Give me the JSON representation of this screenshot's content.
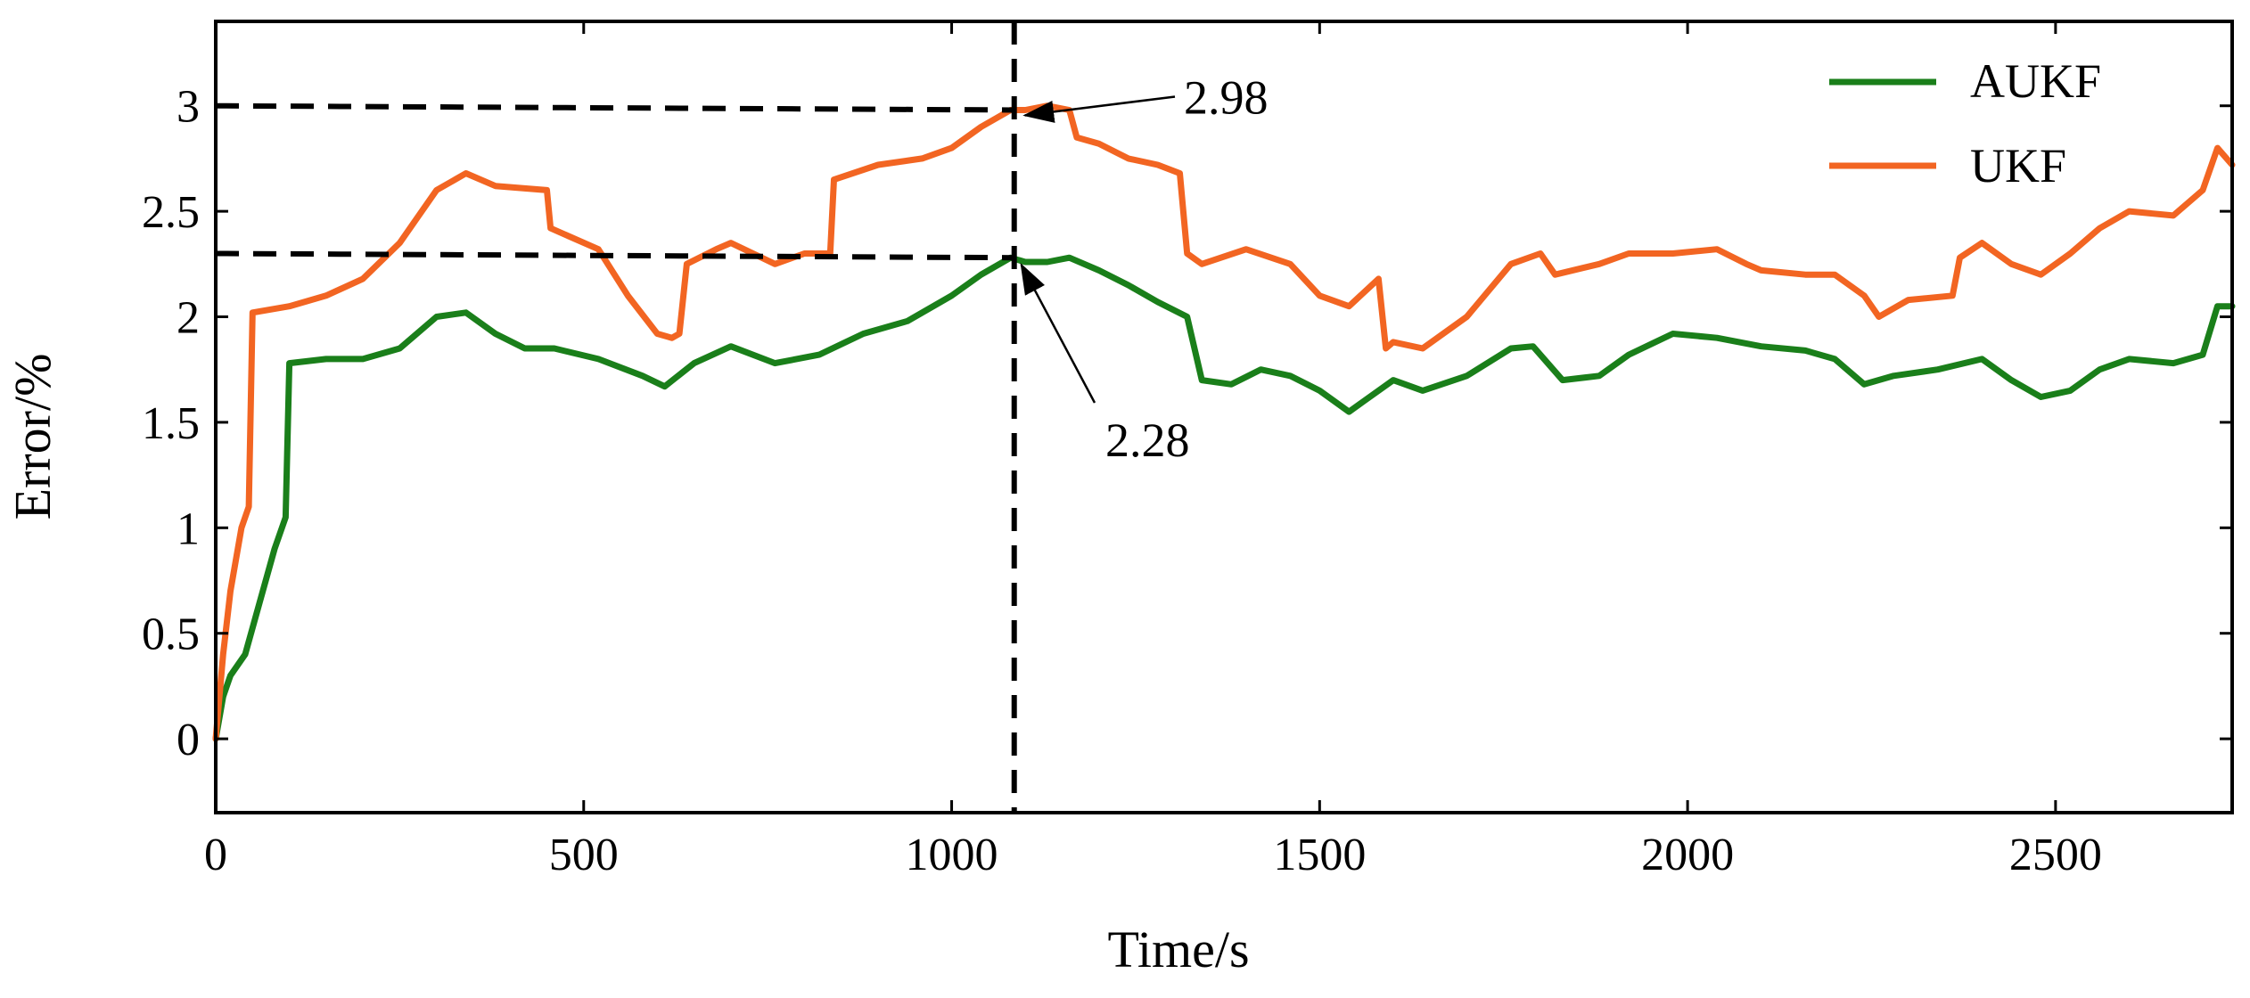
{
  "chart_data": {
    "type": "line",
    "title": "",
    "xlabel": "Time/s",
    "ylabel": "Error/%",
    "xlim": [
      0,
      2740
    ],
    "ylim": [
      -0.35,
      3.4
    ],
    "xticks": [
      0,
      500,
      1000,
      1500,
      2000,
      2500
    ],
    "yticks": [
      0,
      0.5,
      1,
      1.5,
      2,
      2.5,
      3
    ],
    "xtick_labels": [
      "0",
      "500",
      "1000",
      "1500",
      "2000",
      "2500"
    ],
    "ytick_labels": [
      "0",
      "0.5",
      "1",
      "1.5",
      "2",
      "2.5",
      "3"
    ],
    "grid": false,
    "legend_position": "top-right",
    "series": [
      {
        "name": "AUKF",
        "color": "#1a7f1a",
        "x": [
          0,
          10,
          20,
          40,
          60,
          80,
          95,
          100,
          150,
          200,
          250,
          300,
          340,
          380,
          420,
          460,
          520,
          580,
          610,
          650,
          700,
          760,
          820,
          880,
          940,
          1000,
          1040,
          1080,
          1100,
          1130,
          1160,
          1200,
          1240,
          1280,
          1320,
          1340,
          1380,
          1420,
          1460,
          1500,
          1540,
          1560,
          1600,
          1640,
          1700,
          1760,
          1790,
          1810,
          1830,
          1880,
          1920,
          1980,
          2040,
          2100,
          2160,
          2200,
          2240,
          2280,
          2340,
          2400,
          2440,
          2480,
          2520,
          2560,
          2600,
          2660,
          2700,
          2720,
          2740
        ],
        "values": [
          0,
          0.2,
          0.3,
          0.4,
          0.65,
          0.9,
          1.05,
          1.78,
          1.8,
          1.8,
          1.85,
          2.0,
          2.02,
          1.92,
          1.85,
          1.85,
          1.8,
          1.72,
          1.67,
          1.78,
          1.86,
          1.78,
          1.82,
          1.92,
          1.98,
          2.1,
          2.2,
          2.28,
          2.26,
          2.26,
          2.28,
          2.22,
          2.15,
          2.07,
          2.0,
          1.7,
          1.68,
          1.75,
          1.72,
          1.65,
          1.55,
          1.6,
          1.7,
          1.65,
          1.72,
          1.85,
          1.86,
          1.78,
          1.7,
          1.72,
          1.82,
          1.92,
          1.9,
          1.86,
          1.84,
          1.8,
          1.68,
          1.72,
          1.75,
          1.8,
          1.7,
          1.62,
          1.65,
          1.75,
          1.8,
          1.78,
          1.82,
          2.05,
          2.05
        ]
      },
      {
        "name": "UKF",
        "color": "#f26522",
        "x": [
          0,
          10,
          20,
          35,
          45,
          50,
          100,
          150,
          200,
          250,
          300,
          340,
          380,
          450,
          455,
          520,
          560,
          600,
          620,
          630,
          640,
          680,
          700,
          760,
          800,
          835,
          840,
          900,
          960,
          1000,
          1040,
          1080,
          1100,
          1130,
          1160,
          1170,
          1200,
          1240,
          1280,
          1310,
          1320,
          1340,
          1400,
          1460,
          1500,
          1540,
          1580,
          1590,
          1600,
          1640,
          1700,
          1760,
          1800,
          1820,
          1880,
          1920,
          1980,
          2040,
          2080,
          2100,
          2160,
          2200,
          2240,
          2260,
          2300,
          2360,
          2370,
          2400,
          2440,
          2480,
          2520,
          2560,
          2600,
          2660,
          2700,
          2720,
          2740
        ],
        "values": [
          0,
          0.4,
          0.7,
          1.0,
          1.1,
          2.02,
          2.05,
          2.1,
          2.18,
          2.35,
          2.6,
          2.68,
          2.62,
          2.6,
          2.42,
          2.32,
          2.1,
          1.92,
          1.9,
          1.92,
          2.25,
          2.32,
          2.35,
          2.25,
          2.3,
          2.3,
          2.65,
          2.72,
          2.75,
          2.8,
          2.9,
          2.98,
          2.98,
          3.0,
          2.98,
          2.85,
          2.82,
          2.75,
          2.72,
          2.68,
          2.3,
          2.25,
          2.32,
          2.25,
          2.1,
          2.05,
          2.18,
          1.85,
          1.88,
          1.85,
          2.0,
          2.25,
          2.3,
          2.2,
          2.25,
          2.3,
          2.3,
          2.32,
          2.25,
          2.22,
          2.2,
          2.2,
          2.1,
          2.0,
          2.08,
          2.1,
          2.28,
          2.35,
          2.25,
          2.2,
          2.3,
          2.42,
          2.5,
          2.48,
          2.6,
          2.8,
          2.72
        ]
      }
    ],
    "annotations": [
      {
        "text": "2.98",
        "x": 1085,
        "y": 2.98,
        "ref_y": 3.0
      },
      {
        "text": "2.28",
        "x": 1085,
        "y": 2.28,
        "ref_y": 2.3
      }
    ],
    "reference_lines": {
      "vertical_x": 1085,
      "horizontal_y": [
        3.0,
        2.3
      ]
    }
  }
}
